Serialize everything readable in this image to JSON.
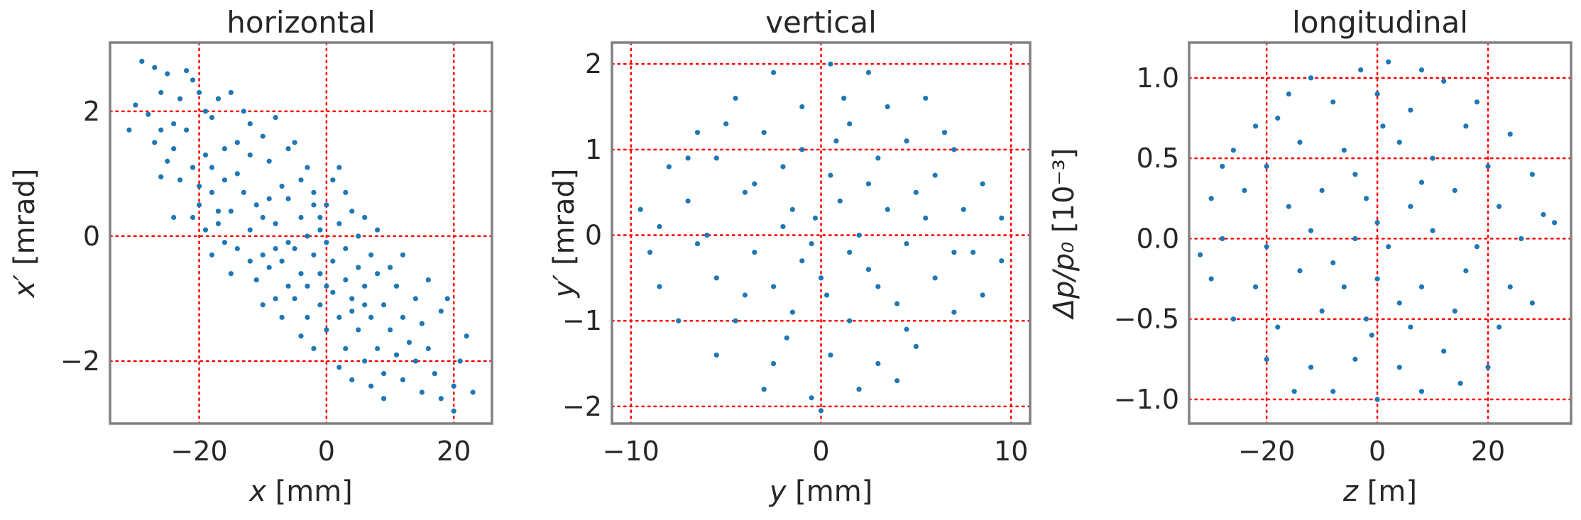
{
  "chart_data": [
    {
      "type": "scatter",
      "title": "horizontal",
      "xlabel": "x [mm]",
      "ylabel": "x′ [mrad]",
      "xlim": [
        -34,
        26
      ],
      "ylim": [
        -3.0,
        3.1
      ],
      "xticks": [
        -20,
        0,
        20
      ],
      "yticks": [
        -2,
        0,
        2
      ],
      "xtick_labels": [
        "−20",
        "0",
        "20"
      ],
      "ytick_labels": [
        "−2",
        "0",
        "2"
      ],
      "grid": true,
      "color": "#1f77b4",
      "points": [
        [
          -29,
          2.8
        ],
        [
          -27,
          2.7
        ],
        [
          -25,
          2.6
        ],
        [
          -22,
          2.65
        ],
        [
          -21,
          2.5
        ],
        [
          -30,
          2.1
        ],
        [
          -31,
          1.7
        ],
        [
          -28,
          1.95
        ],
        [
          -26,
          2.3
        ],
        [
          -24,
          1.8
        ],
        [
          -23,
          2.2
        ],
        [
          -27,
          1.5
        ],
        [
          -25,
          1.2
        ],
        [
          -22,
          1.7
        ],
        [
          -20,
          2.3
        ],
        [
          -19,
          2.0
        ],
        [
          -18,
          1.9
        ],
        [
          -17,
          2.2
        ],
        [
          -15,
          2.3
        ],
        [
          -13,
          2.0
        ],
        [
          -12,
          1.8
        ],
        [
          -14,
          1.5
        ],
        [
          -16,
          1.4
        ],
        [
          -19,
          1.3
        ],
        [
          -21,
          1.1
        ],
        [
          -23,
          0.9
        ],
        [
          -26,
          0.95
        ],
        [
          -24,
          0.3
        ],
        [
          -20,
          0.5
        ],
        [
          -18,
          0.7
        ],
        [
          -16,
          0.9
        ],
        [
          -14,
          1.0
        ],
        [
          -12,
          1.3
        ],
        [
          -10,
          1.6
        ],
        [
          -9,
          1.2
        ],
        [
          -8,
          1.9
        ],
        [
          -6,
          1.4
        ],
        [
          -5,
          1.5
        ],
        [
          -7,
          0.8
        ],
        [
          -9,
          0.6
        ],
        [
          -11,
          0.5
        ],
        [
          -13,
          0.7
        ],
        [
          -15,
          0.4
        ],
        [
          -17,
          0.2
        ],
        [
          -19,
          0.1
        ],
        [
          -21,
          0.3
        ],
        [
          -12,
          0.1
        ],
        [
          -10,
          0.3
        ],
        [
          -8,
          0.2
        ],
        [
          -6,
          0.6
        ],
        [
          -4,
          0.9
        ],
        [
          -3,
          1.1
        ],
        [
          -2,
          0.7
        ],
        [
          -4,
          0.3
        ],
        [
          -6,
          -0.1
        ],
        [
          -8,
          -0.2
        ],
        [
          -10,
          -0.3
        ],
        [
          -12,
          -0.4
        ],
        [
          -14,
          -0.2
        ],
        [
          -16,
          -0.1
        ],
        [
          -18,
          -0.3
        ],
        [
          -15,
          -0.6
        ],
        [
          -11,
          -0.7
        ],
        [
          -9,
          -0.5
        ],
        [
          -7,
          -0.4
        ],
        [
          -5,
          -0.2
        ],
        [
          -3,
          0.0
        ],
        [
          -1,
          0.3
        ],
        [
          0,
          0.5
        ],
        [
          1,
          0.9
        ],
        [
          2,
          1.1
        ],
        [
          3,
          0.7
        ],
        [
          4,
          0.4
        ],
        [
          2,
          0.2
        ],
        [
          0,
          -0.1
        ],
        [
          -2,
          -0.3
        ],
        [
          -4,
          -0.6
        ],
        [
          -6,
          -0.8
        ],
        [
          -8,
          -1.0
        ],
        [
          -10,
          -1.1
        ],
        [
          -7,
          -1.3
        ],
        [
          -5,
          -1.0
        ],
        [
          -3,
          -0.8
        ],
        [
          -1,
          -0.6
        ],
        [
          1,
          -0.4
        ],
        [
          3,
          -0.2
        ],
        [
          5,
          0.0
        ],
        [
          6,
          0.3
        ],
        [
          8,
          0.1
        ],
        [
          7,
          -0.3
        ],
        [
          5,
          -0.5
        ],
        [
          3,
          -0.7
        ],
        [
          1,
          -0.9
        ],
        [
          -1,
          -1.1
        ],
        [
          -3,
          -1.3
        ],
        [
          -4,
          -1.6
        ],
        [
          -2,
          -1.8
        ],
        [
          0,
          -1.5
        ],
        [
          2,
          -1.3
        ],
        [
          4,
          -1.0
        ],
        [
          6,
          -0.8
        ],
        [
          8,
          -0.6
        ],
        [
          10,
          -0.5
        ],
        [
          12,
          -0.3
        ],
        [
          11,
          -0.8
        ],
        [
          9,
          -1.1
        ],
        [
          7,
          -1.3
        ],
        [
          5,
          -1.5
        ],
        [
          3,
          -1.8
        ],
        [
          2,
          -2.1
        ],
        [
          4,
          -2.3
        ],
        [
          6,
          -2.0
        ],
        [
          8,
          -1.8
        ],
        [
          10,
          -1.5
        ],
        [
          12,
          -1.3
        ],
        [
          14,
          -1.0
        ],
        [
          16,
          -0.7
        ],
        [
          15,
          -1.4
        ],
        [
          13,
          -1.7
        ],
        [
          11,
          -1.9
        ],
        [
          9,
          -2.2
        ],
        [
          7,
          -2.4
        ],
        [
          9,
          -2.6
        ],
        [
          12,
          -2.3
        ],
        [
          14,
          -2.0
        ],
        [
          16,
          -1.8
        ],
        [
          18,
          -1.2
        ],
        [
          17,
          -2.2
        ],
        [
          15,
          -2.5
        ],
        [
          18,
          -2.6
        ],
        [
          20,
          -2.4
        ],
        [
          21,
          -2.0
        ],
        [
          22,
          -1.6
        ],
        [
          23,
          -2.5
        ],
        [
          20,
          -2.8
        ],
        [
          19,
          -1.0
        ],
        [
          -26,
          1.7
        ],
        [
          -24,
          1.4
        ],
        [
          -18,
          1.1
        ],
        [
          -17,
          0.4
        ],
        [
          -20,
          0.8
        ],
        [
          -1,
          0.1
        ],
        [
          -2,
          0.5
        ],
        [
          0,
          -0.8
        ],
        [
          4,
          -1.2
        ],
        [
          6,
          -1.1
        ]
      ]
    },
    {
      "type": "scatter",
      "title": "vertical",
      "xlabel": "y [mm]",
      "ylabel": "y′ [mrad]",
      "xlim": [
        -11,
        11
      ],
      "ylim": [
        -2.2,
        2.25
      ],
      "xticks": [
        -10,
        0,
        10
      ],
      "yticks": [
        -2,
        -1,
        0,
        1,
        2
      ],
      "xtick_labels": [
        "−10",
        "0",
        "10"
      ],
      "ytick_labels": [
        "−2",
        "−1",
        "0",
        "1",
        "2"
      ],
      "grid": true,
      "color": "#1f77b4",
      "points": [
        [
          -2.5,
          1.9
        ],
        [
          0.5,
          2.0
        ],
        [
          2.5,
          1.9
        ],
        [
          -4.5,
          1.6
        ],
        [
          -1.0,
          1.5
        ],
        [
          3.5,
          1.5
        ],
        [
          5.5,
          1.6
        ],
        [
          -6.5,
          1.2
        ],
        [
          -3.0,
          1.2
        ],
        [
          1.5,
          1.3
        ],
        [
          4.5,
          1.1
        ],
        [
          7.0,
          1.0
        ],
        [
          -8.0,
          0.8
        ],
        [
          -5.5,
          0.9
        ],
        [
          -2.0,
          0.8
        ],
        [
          0.5,
          0.7
        ],
        [
          2.5,
          0.6
        ],
        [
          6.0,
          0.7
        ],
        [
          8.5,
          0.6
        ],
        [
          -9.5,
          0.3
        ],
        [
          -7.0,
          0.4
        ],
        [
          -4.0,
          0.5
        ],
        [
          -1.5,
          0.3
        ],
        [
          1.0,
          0.4
        ],
        [
          3.5,
          0.3
        ],
        [
          5.5,
          0.2
        ],
        [
          7.5,
          0.3
        ],
        [
          9.5,
          0.2
        ],
        [
          -9.0,
          -0.2
        ],
        [
          -6.5,
          -0.1
        ],
        [
          -3.5,
          -0.2
        ],
        [
          -0.5,
          -0.1
        ],
        [
          2.0,
          0.0
        ],
        [
          4.5,
          -0.1
        ],
        [
          7.0,
          -0.2
        ],
        [
          9.5,
          -0.3
        ],
        [
          -8.5,
          -0.6
        ],
        [
          -5.5,
          -0.5
        ],
        [
          -2.5,
          -0.6
        ],
        [
          0.0,
          -0.5
        ],
        [
          3.0,
          -0.6
        ],
        [
          6.0,
          -0.5
        ],
        [
          8.5,
          -0.7
        ],
        [
          -7.5,
          -1.0
        ],
        [
          -4.5,
          -1.0
        ],
        [
          -1.5,
          -0.9
        ],
        [
          1.5,
          -1.0
        ],
        [
          4.5,
          -1.1
        ],
        [
          7.0,
          -0.9
        ],
        [
          -5.5,
          -1.4
        ],
        [
          -2.5,
          -1.5
        ],
        [
          0.5,
          -1.4
        ],
        [
          3.0,
          -1.5
        ],
        [
          5.0,
          -1.3
        ],
        [
          -3.0,
          -1.8
        ],
        [
          -0.5,
          -1.9
        ],
        [
          2.0,
          -1.8
        ],
        [
          4.0,
          -1.7
        ],
        [
          0.0,
          -2.05
        ],
        [
          -1.0,
          1.0
        ],
        [
          0.8,
          1.1
        ],
        [
          -3.5,
          0.6
        ],
        [
          3.0,
          0.9
        ],
        [
          -6.0,
          0.0
        ],
        [
          5.0,
          0.5
        ],
        [
          -1.0,
          -0.3
        ],
        [
          1.5,
          -0.2
        ],
        [
          -2.0,
          0.1
        ],
        [
          2.5,
          -0.4
        ],
        [
          -4.0,
          -0.7
        ],
        [
          4.0,
          -0.8
        ],
        [
          -7.0,
          0.9
        ],
        [
          8.0,
          -0.2
        ],
        [
          -8.5,
          0.1
        ],
        [
          6.5,
          1.2
        ],
        [
          -5.0,
          1.3
        ],
        [
          -0.3,
          0.2
        ],
        [
          0.3,
          -0.7
        ],
        [
          -1.8,
          -1.2
        ],
        [
          1.2,
          1.6
        ]
      ]
    },
    {
      "type": "scatter",
      "title": "longitudinal",
      "xlabel": "z [m]",
      "ylabel": "Δp/p₀ [10⁻³]",
      "xlim": [
        -34,
        35
      ],
      "ylim": [
        -1.15,
        1.22
      ],
      "xticks": [
        -20,
        0,
        20
      ],
      "yticks": [
        -1.0,
        -0.5,
        0.0,
        0.5,
        1.0
      ],
      "xtick_labels": [
        "−20",
        "0",
        "20"
      ],
      "ytick_labels": [
        "−1.0",
        "−0.5",
        "0.0",
        "0.5",
        "1.0"
      ],
      "grid": true,
      "color": "#1f77b4",
      "points": [
        [
          -12,
          1.0
        ],
        [
          -3,
          1.05
        ],
        [
          2,
          1.1
        ],
        [
          8,
          1.05
        ],
        [
          12,
          0.98
        ],
        [
          -18,
          0.75
        ],
        [
          -8,
          0.85
        ],
        [
          0,
          0.9
        ],
        [
          6,
          0.8
        ],
        [
          16,
          0.7
        ],
        [
          24,
          0.65
        ],
        [
          -26,
          0.55
        ],
        [
          -20,
          0.45
        ],
        [
          -14,
          0.6
        ],
        [
          -6,
          0.55
        ],
        [
          4,
          0.6
        ],
        [
          10,
          0.5
        ],
        [
          20,
          0.45
        ],
        [
          28,
          0.4
        ],
        [
          -30,
          0.25
        ],
        [
          -24,
          0.3
        ],
        [
          -16,
          0.2
        ],
        [
          -10,
          0.3
        ],
        [
          -2,
          0.25
        ],
        [
          6,
          0.2
        ],
        [
          14,
          0.3
        ],
        [
          22,
          0.2
        ],
        [
          30,
          0.15
        ],
        [
          -28,
          0.0
        ],
        [
          -20,
          -0.05
        ],
        [
          -12,
          0.05
        ],
        [
          -4,
          0.0
        ],
        [
          2,
          -0.05
        ],
        [
          10,
          0.05
        ],
        [
          18,
          -0.05
        ],
        [
          26,
          0.0
        ],
        [
          -30,
          -0.25
        ],
        [
          -22,
          -0.3
        ],
        [
          -14,
          -0.2
        ],
        [
          -6,
          -0.3
        ],
        [
          0,
          -0.25
        ],
        [
          8,
          -0.3
        ],
        [
          16,
          -0.2
        ],
        [
          24,
          -0.3
        ],
        [
          -26,
          -0.5
        ],
        [
          -18,
          -0.55
        ],
        [
          -10,
          -0.45
        ],
        [
          -2,
          -0.5
        ],
        [
          6,
          -0.55
        ],
        [
          14,
          -0.45
        ],
        [
          22,
          -0.55
        ],
        [
          -20,
          -0.75
        ],
        [
          -12,
          -0.8
        ],
        [
          -4,
          -0.75
        ],
        [
          4,
          -0.8
        ],
        [
          12,
          -0.7
        ],
        [
          20,
          -0.8
        ],
        [
          -8,
          -0.95
        ],
        [
          0,
          -1.0
        ],
        [
          8,
          -0.95
        ],
        [
          -16,
          0.9
        ],
        [
          18,
          0.85
        ],
        [
          -22,
          0.7
        ],
        [
          -32,
          -0.1
        ],
        [
          32,
          0.1
        ],
        [
          -4,
          0.4
        ],
        [
          4,
          -0.4
        ],
        [
          -8,
          -0.15
        ],
        [
          8,
          0.35
        ],
        [
          0,
          0.1
        ],
        [
          -1,
          -0.6
        ],
        [
          1,
          0.7
        ],
        [
          15,
          -0.9
        ],
        [
          -15,
          -0.95
        ],
        [
          28,
          -0.4
        ],
        [
          -28,
          0.45
        ]
      ]
    }
  ]
}
